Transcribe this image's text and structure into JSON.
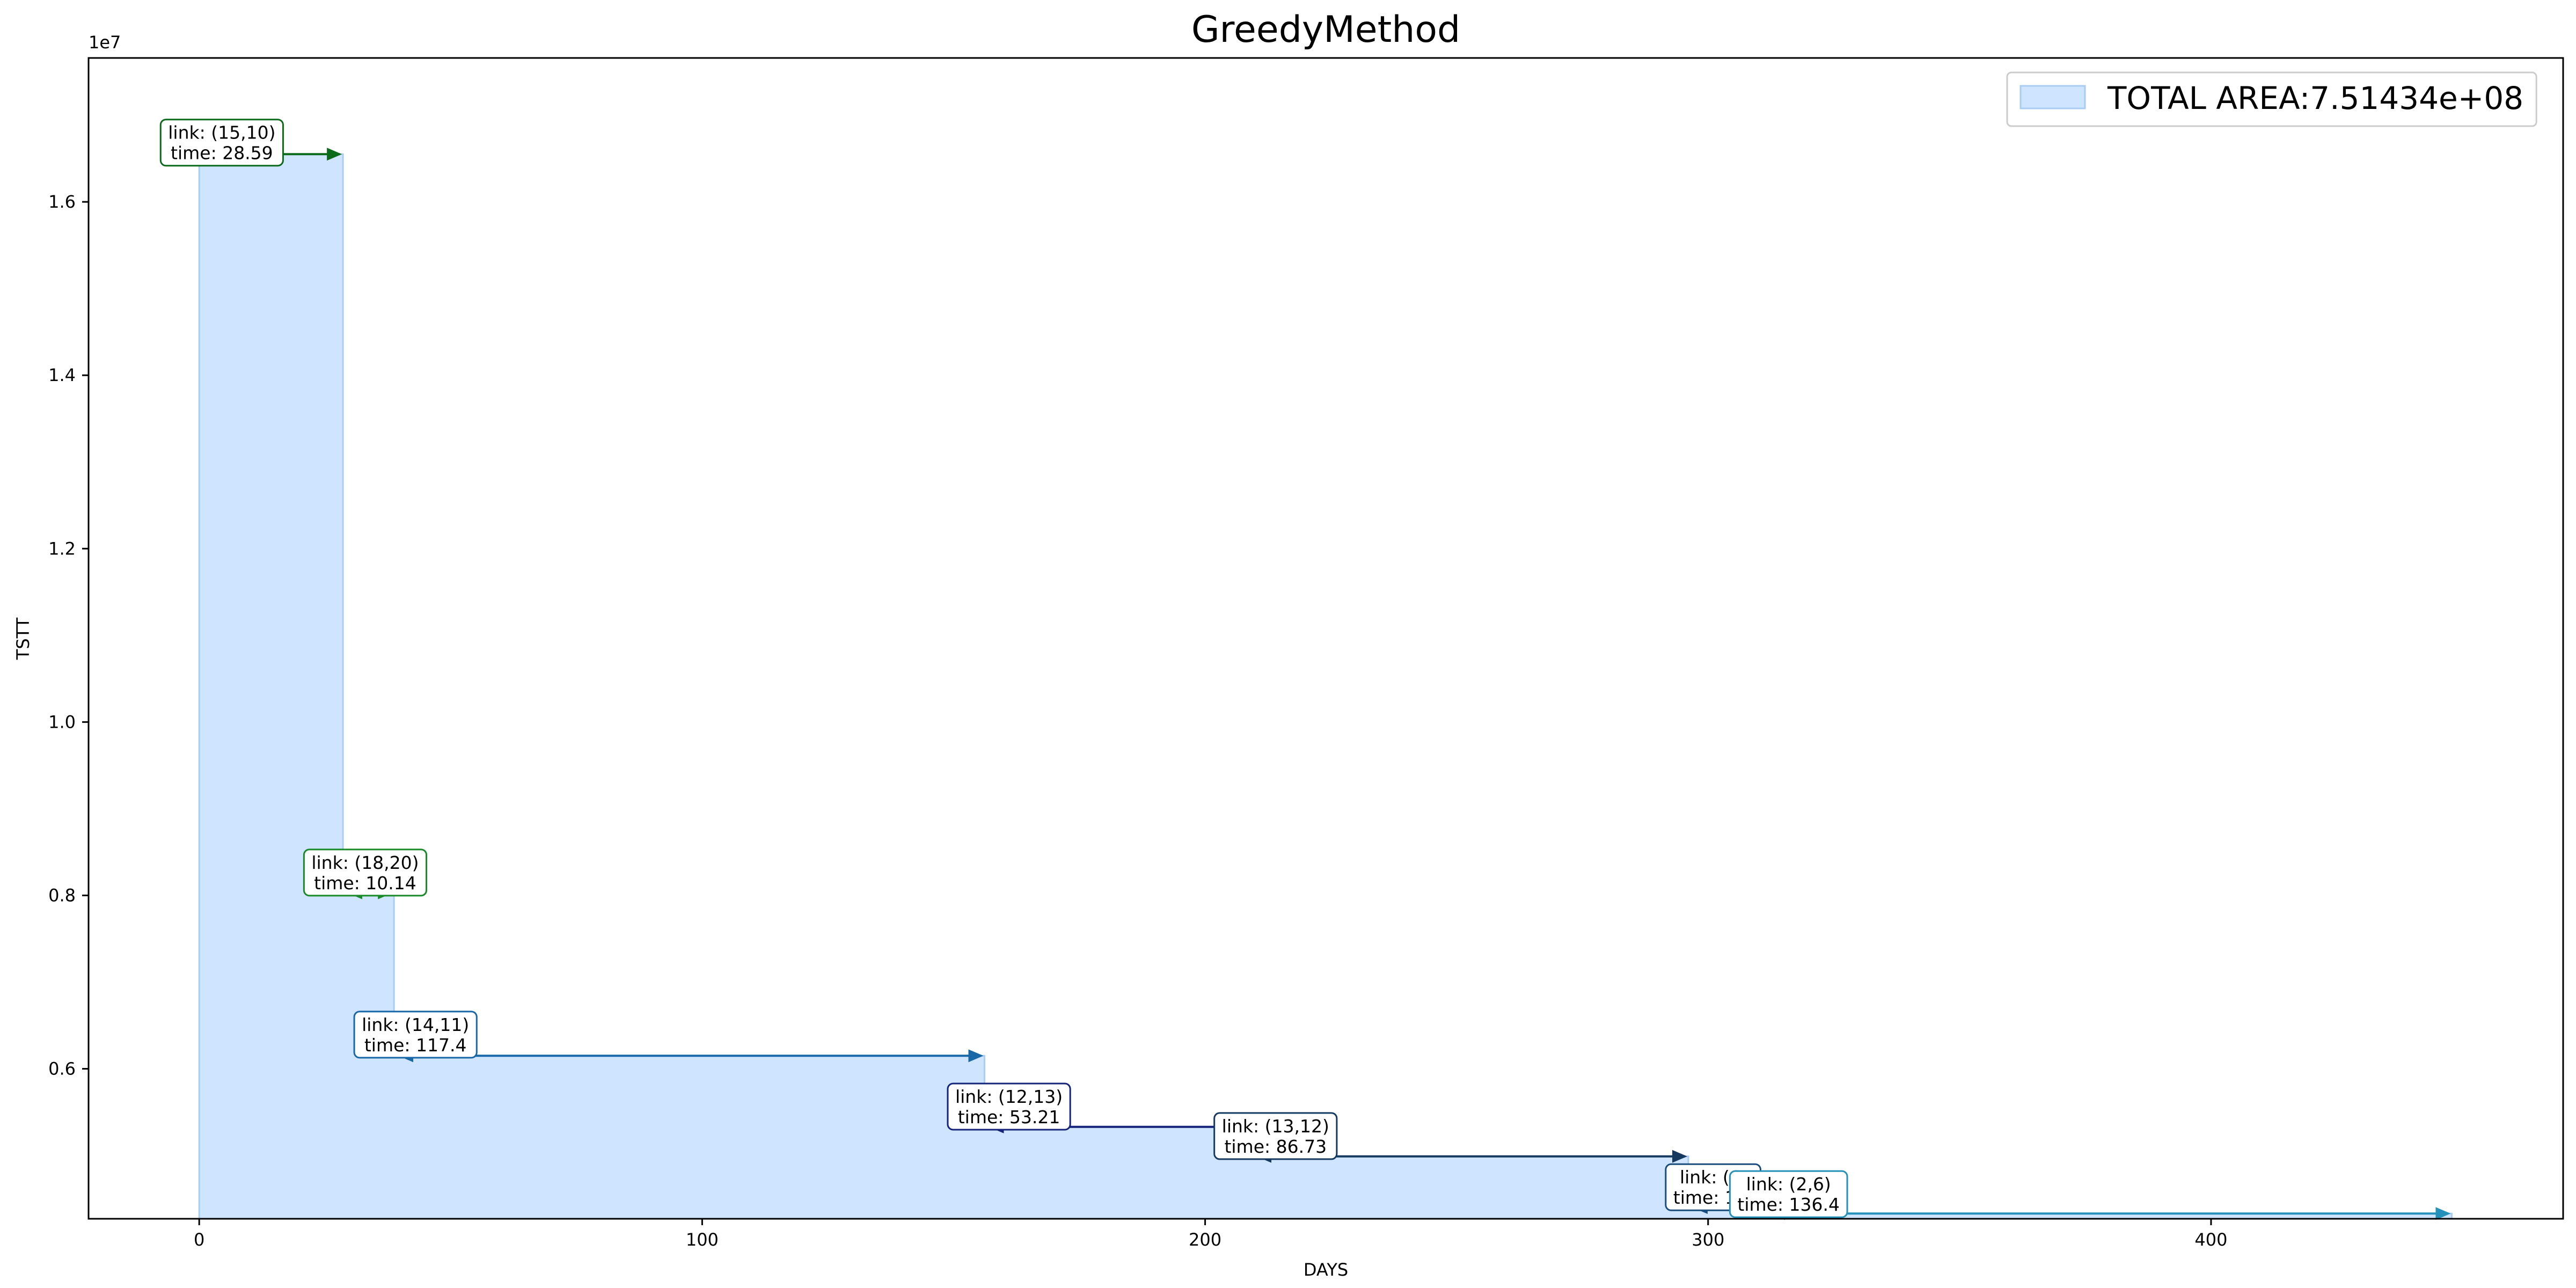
{
  "chart_data": {
    "type": "area",
    "title": "GreedyMethod",
    "xlabel": "DAYS",
    "ylabel": "TSTT",
    "y_exponent_label": "1e7",
    "y_multiplier": 10000000,
    "xlim": [
      -22,
      470
    ],
    "ylim": [
      4270000,
      17660000
    ],
    "x_ticks": [
      0,
      100,
      200,
      300,
      400
    ],
    "x_tick_labels": [
      "0",
      "100",
      "200",
      "300",
      "400"
    ],
    "y_ticks": [
      6000000,
      8000000,
      10000000,
      12000000,
      14000000,
      16000000
    ],
    "y_tick_labels": [
      "0.6",
      "0.8",
      "1.0",
      "1.2",
      "1.4",
      "1.6"
    ],
    "grid": false,
    "legend_position": "top-right",
    "series": [
      {
        "name": "TOTAL AREA:7.51434e+08",
        "color": "#cfe4ff",
        "edge_color": "#a9cdf2",
        "steps": [
          {
            "x_start": 0.0,
            "x_end": 28.59,
            "y": 16550000
          },
          {
            "x_start": 28.59,
            "x_end": 38.73,
            "y": 8030000
          },
          {
            "x_start": 38.73,
            "x_end": 156.13,
            "y": 6150000
          },
          {
            "x_start": 156.13,
            "x_end": 209.34,
            "y": 5330000
          },
          {
            "x_start": 209.34,
            "x_end": 296.07,
            "y": 4990000
          },
          {
            "x_start": 296.07,
            "x_end": 311.45,
            "y": 4400000
          },
          {
            "x_start": 311.45,
            "x_end": 447.85,
            "y": 4330000
          }
        ]
      }
    ],
    "annotations": [
      {
        "line1": "link: (15,10)",
        "line2": "time: 28.59",
        "color": "#0b6b1a",
        "arrow_from": 0.0,
        "arrow_to": 28.59,
        "arrow_y": 16550000,
        "label_x": 4.5,
        "label_y": 16690000
      },
      {
        "line1": "link: (18,20)",
        "line2": "time: 10.14",
        "color": "#198a28",
        "arrow_from": 28.59,
        "arrow_to": 38.73,
        "arrow_y": 8030000,
        "label_x": 33.0,
        "label_y": 8270000
      },
      {
        "line1": "link: (14,11)",
        "line2": "time: 117.4",
        "color": "#1868a8",
        "arrow_from": 38.73,
        "arrow_to": 156.13,
        "arrow_y": 6150000,
        "label_x": 43.0,
        "label_y": 6400000
      },
      {
        "line1": "link: (12,13)",
        "line2": "time: 53.21",
        "color": "#15237a",
        "arrow_from": 156.13,
        "arrow_to": 209.34,
        "arrow_y": 5330000,
        "label_x": 161.0,
        "label_y": 5570000
      },
      {
        "line1": "link: (13,12)",
        "line2": "time: 86.73",
        "color": "#16395f",
        "arrow_from": 209.34,
        "arrow_to": 296.07,
        "arrow_y": 4990000,
        "label_x": 214.0,
        "label_y": 5230000
      },
      {
        "line1": "link: (6,",
        "line2": "time: 15.",
        "color": "#1a4d7e",
        "arrow_from": 296.07,
        "arrow_to": 311.45,
        "arrow_y": 4400000,
        "label_x": 301.0,
        "label_y": 4640000
      },
      {
        "line1": "link: (2,6)",
        "line2": "time: 136.4",
        "color": "#2590b8",
        "arrow_from": 311.45,
        "arrow_to": 447.85,
        "arrow_y": 4330000,
        "label_x": 316.0,
        "label_y": 4560000
      }
    ]
  }
}
